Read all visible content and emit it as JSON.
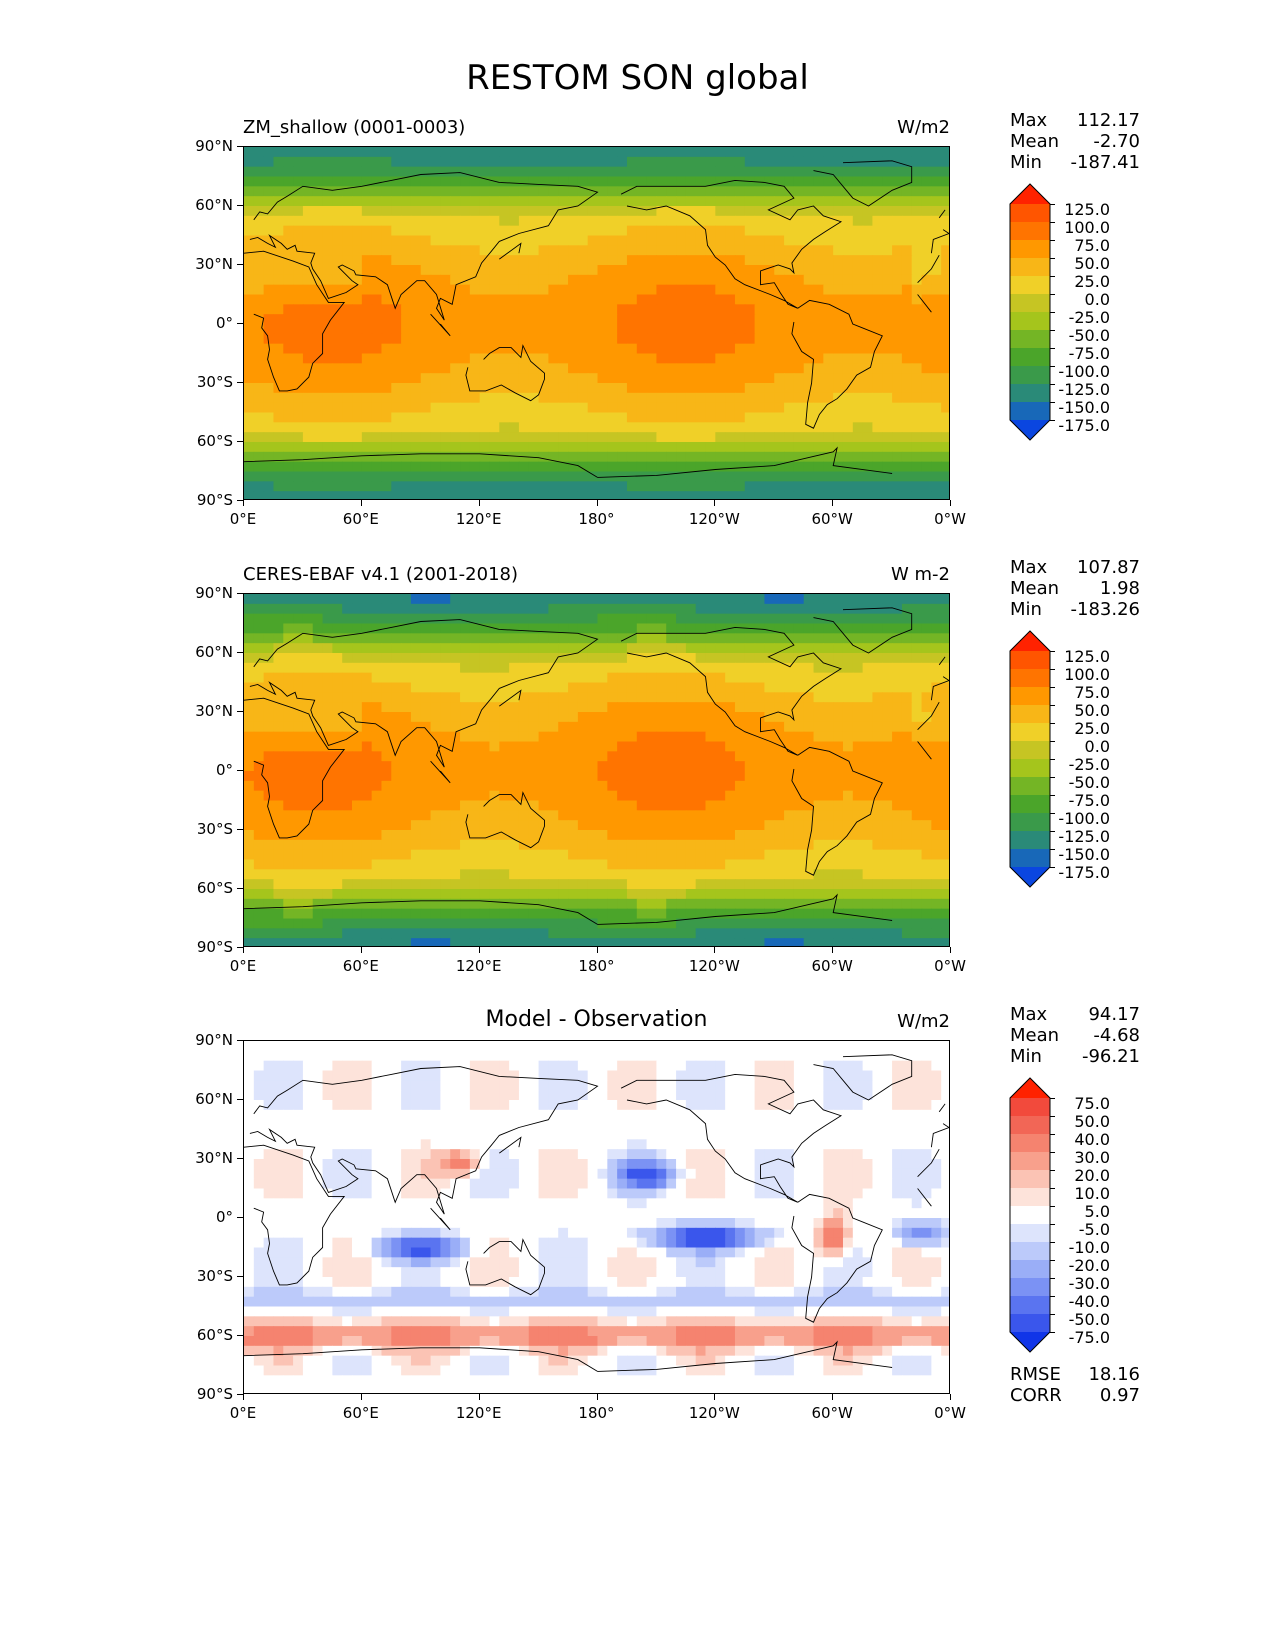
{
  "figure": {
    "title": "RESTOM SON global"
  },
  "panels": [
    {
      "id": "model",
      "title": "ZM_shallow (0001-0003)",
      "title_centered": false,
      "units": "W/m2",
      "stats": [
        {
          "label": "Max",
          "value": "112.17"
        },
        {
          "label": "Mean",
          "value": "-2.70"
        },
        {
          "label": "Min",
          "value": "-187.41"
        }
      ],
      "colorbar": {
        "labels": [
          "125.0",
          "100.0",
          "75.0",
          "50.0",
          "25.0",
          "0.0",
          "-25.0",
          "-50.0",
          "-75.0",
          "-100.0",
          "-125.0",
          "-150.0",
          "-175.0"
        ],
        "colors": [
          "#ff2200",
          "#ff5500",
          "#ff7400",
          "#ff9800",
          "#f8b617",
          "#f0d028",
          "#c6c523",
          "#a5c51c",
          "#74b525",
          "#4ba52a",
          "#3a9a4a",
          "#2a8a78",
          "#1868b8",
          "#0a46e0"
        ]
      },
      "color_scale": "absolute"
    },
    {
      "id": "obs",
      "title": "CERES-EBAF v4.1 (2001-2018)",
      "title_centered": false,
      "units": "W m-2",
      "stats": [
        {
          "label": "Max",
          "value": "107.87"
        },
        {
          "label": "Mean",
          "value": "1.98"
        },
        {
          "label": "Min",
          "value": "-183.26"
        }
      ],
      "colorbar": {
        "labels": [
          "125.0",
          "100.0",
          "75.0",
          "50.0",
          "25.0",
          "0.0",
          "-25.0",
          "-50.0",
          "-75.0",
          "-100.0",
          "-125.0",
          "-150.0",
          "-175.0"
        ],
        "colors": [
          "#ff2200",
          "#ff5500",
          "#ff7400",
          "#ff9800",
          "#f8b617",
          "#f0d028",
          "#c6c523",
          "#a5c51c",
          "#74b525",
          "#4ba52a",
          "#3a9a4a",
          "#2a8a78",
          "#1868b8",
          "#0a46e0"
        ]
      },
      "color_scale": "absolute"
    },
    {
      "id": "diff",
      "title": "Model - Observation",
      "title_centered": true,
      "units": "W/m2",
      "stats": [
        {
          "label": "Max",
          "value": "94.17"
        },
        {
          "label": "Mean",
          "value": "-4.68"
        },
        {
          "label": "Min",
          "value": "-96.21"
        }
      ],
      "colorbar": {
        "labels": [
          "75.0",
          "50.0",
          "40.0",
          "30.0",
          "20.0",
          "10.0",
          "5.0",
          "-5.0",
          "-10.0",
          "-20.0",
          "-30.0",
          "-40.0",
          "-50.0",
          "-75.0"
        ],
        "colors": [
          "#ff2200",
          "#f24a3c",
          "#f26656",
          "#f5836f",
          "#f8a08c",
          "#fbc3b4",
          "#fde3da",
          "#ffffff",
          "#dde4fc",
          "#bccafa",
          "#9aaef7",
          "#7b92f4",
          "#5a74f0",
          "#3a56ec",
          "#1035e8"
        ]
      },
      "color_scale": "difference",
      "extra_stats": [
        {
          "label": "RMSE",
          "value": "18.16"
        },
        {
          "label": "CORR",
          "value": "0.97"
        }
      ]
    }
  ],
  "axes": {
    "y_ticks": [
      "90°N",
      "60°N",
      "30°N",
      "0°",
      "30°S",
      "60°S",
      "90°S"
    ],
    "x_ticks": [
      "0°E",
      "60°E",
      "120°E",
      "180°",
      "120°W",
      "60°W",
      "0°W"
    ]
  }
}
